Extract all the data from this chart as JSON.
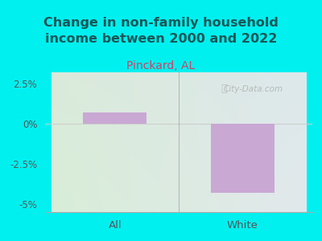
{
  "title": "Change in non-family household\nincome between 2000 and 2022",
  "subtitle": "Pinckard, AL",
  "categories": [
    "All",
    "White"
  ],
  "values": [
    0.7,
    -4.3
  ],
  "bar_color": "#c9a8d4",
  "background_color": "#00f0f0",
  "plot_bg_topleft": "#d8ecd8",
  "plot_bg_topright": "#e0e8ec",
  "plot_bg_bottom": "#dceede",
  "ylim": [
    -5.5,
    3.2
  ],
  "yticks": [
    -5.0,
    -2.5,
    0.0,
    2.5
  ],
  "ytick_labels": [
    "-5%",
    "-2.5%",
    "0%",
    "2.5%"
  ],
  "title_fontsize": 11.5,
  "subtitle_fontsize": 10,
  "subtitle_color": "#cc4466",
  "title_color": "#1a5555",
  "watermark": "City-Data.com",
  "zero_line_color": "#cccccc",
  "bar_width": 0.5,
  "divider_color": "#aaaaaa"
}
